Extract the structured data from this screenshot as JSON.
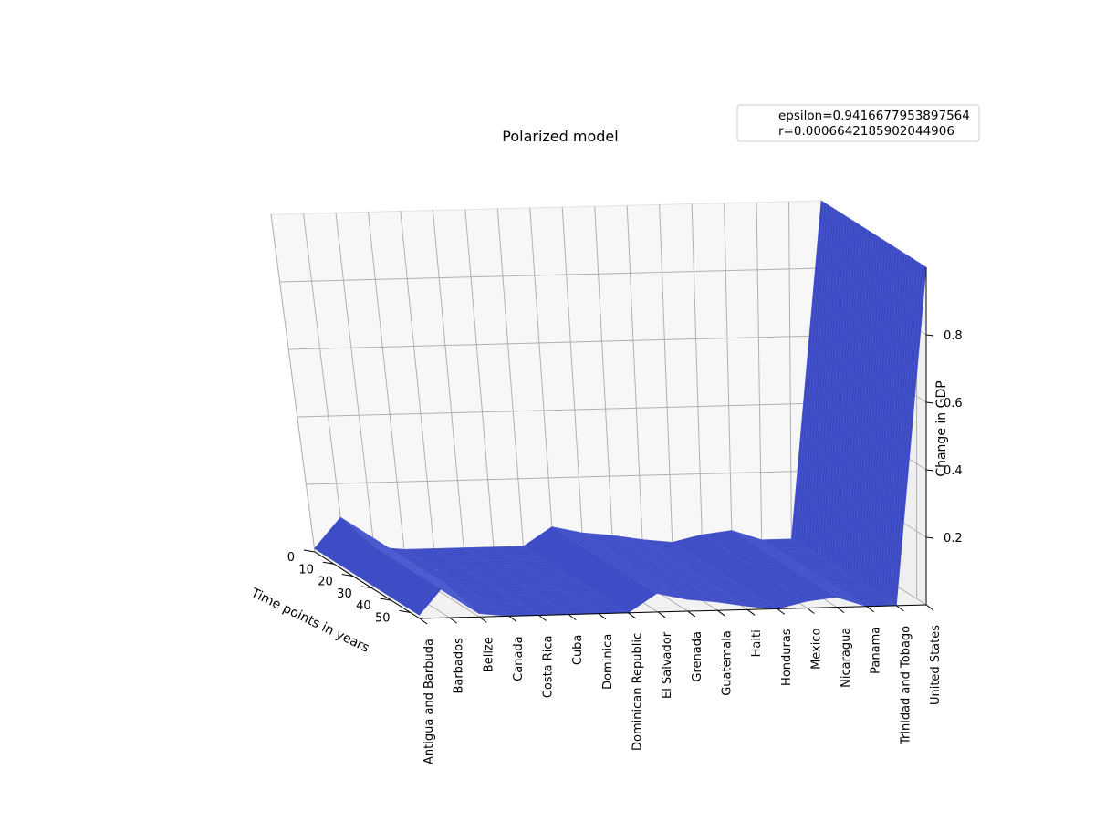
{
  "chart_data": {
    "type": "surface3d",
    "title": "Polarized model",
    "xlabel": "Time points in years",
    "ylabel": "",
    "zlabel": "Change in GDP",
    "legend": {
      "placement": "top-right",
      "entries": [
        "epsilon=0.9416677953897564",
        "r=0.0006642185902044906"
      ]
    },
    "x_ticks": [
      0,
      10,
      20,
      30,
      40,
      50
    ],
    "z_ticks": [
      "0.2",
      "0.4",
      "0.6",
      "0.8"
    ],
    "zlim": [
      0,
      1
    ],
    "time_range": [
      0,
      55
    ],
    "surface_color": "#3c4bc4",
    "categories": [
      "Antigua and Barbuda",
      "Barbados",
      "Belize",
      "Canada",
      "Costa Rica",
      "Cuba",
      "Dominica",
      "Dominican Republic",
      "El Salvador",
      "Grenada",
      "Guatemala",
      "Haiti",
      "Honduras",
      "Mexico",
      "Nicaragua",
      "Panama",
      "Trinidad and Tobago",
      "United States"
    ],
    "values": [
      0.01,
      0.1,
      0.01,
      0.0,
      0.0,
      0.0,
      0.0,
      0.0,
      0.055,
      0.035,
      0.025,
      0.01,
      0.0,
      0.02,
      0.03,
      0.0,
      0.0,
      1.0
    ]
  }
}
